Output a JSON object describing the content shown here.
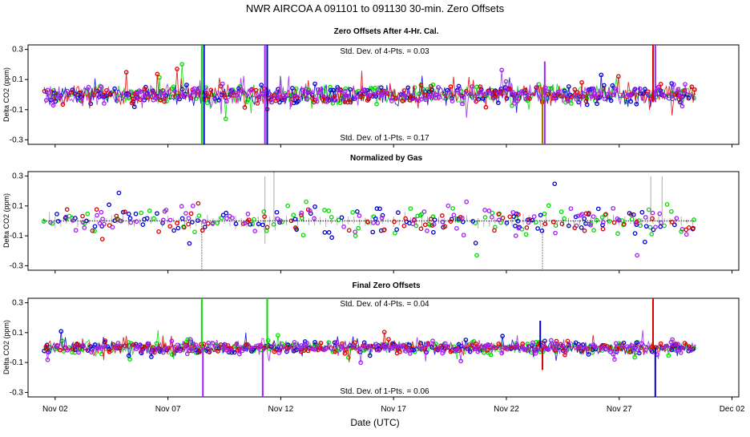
{
  "chart_data": {
    "type": "scatter",
    "title": "NWR   AIRCOA A   091101 to 091130   30-min. Zero Offsets",
    "xlabel": "Date (UTC)",
    "x_ticks": [
      "Nov 02",
      "Nov 07",
      "Nov 12",
      "Nov 17",
      "Nov 22",
      "Nov 27",
      "Dec 02"
    ],
    "x_tick_days": [
      2,
      7,
      12,
      17,
      22,
      27,
      32
    ],
    "xlim": [
      0.8,
      32.3
    ],
    "series_colors": [
      "#00dd00",
      "#0000cc",
      "#dd0000",
      "#a020f0"
    ],
    "panels": [
      {
        "title": "Zero Offsets After 4-Hr. Cal.",
        "ylabel": "Delta CO2 (ppm)",
        "y_ticks": [
          "0.3",
          "0.1",
          "-0.1",
          "-0.3"
        ],
        "y_tick_values": [
          0.3,
          0.1,
          -0.1,
          -0.3
        ],
        "ylim": [
          -0.33,
          0.33
        ],
        "ann_top": "Std. Dev. of 4-Pts. = 0.03",
        "ann_bottom": "Std. Dev. of 1-Pts. = 0.17",
        "spread": 0.055,
        "spikes": [
          {
            "day": 8.5,
            "color": "#00dd00",
            "range": [
              -0.33,
              0.33
            ]
          },
          {
            "day": 8.6,
            "color": "#0000cc",
            "range": [
              -0.33,
              0.33
            ]
          },
          {
            "day": 11.3,
            "color": "#a020f0",
            "range": [
              -0.33,
              0.33
            ]
          },
          {
            "day": 11.4,
            "color": "#0000cc",
            "range": [
              -0.33,
              0.33
            ]
          },
          {
            "day": 23.6,
            "color": "#a07800",
            "range": [
              -0.33,
              0.05
            ]
          },
          {
            "day": 23.7,
            "color": "#a020f0",
            "range": [
              -0.33,
              0.22
            ]
          },
          {
            "day": 28.5,
            "color": "#dd0000",
            "range": [
              -0.05,
              0.33
            ]
          },
          {
            "day": 28.6,
            "color": "#a020f0",
            "range": [
              -0.05,
              0.33
            ]
          }
        ]
      },
      {
        "title": "Normalized by Gas",
        "ylabel": "Delta CO2 (ppm)",
        "y_ticks": [
          "0.3",
          "0.1",
          "-0.1",
          "-0.3"
        ],
        "y_tick_values": [
          0.3,
          0.1,
          -0.1,
          -0.3
        ],
        "ylim": [
          -0.33,
          0.33
        ],
        "ann_top": "",
        "ann_bottom": "",
        "spread": 0.08,
        "spikes": [
          {
            "day": 8.5,
            "color": "#555555",
            "range": [
              -0.33,
              0.0
            ]
          },
          {
            "day": 11.3,
            "color": "#555555",
            "range": [
              -0.15,
              0.3
            ]
          },
          {
            "day": 11.7,
            "color": "#555555",
            "range": [
              0.0,
              0.33
            ]
          },
          {
            "day": 23.6,
            "color": "#555555",
            "range": [
              -0.33,
              0.0
            ]
          },
          {
            "day": 28.4,
            "color": "#555555",
            "range": [
              0.0,
              0.3
            ]
          },
          {
            "day": 28.9,
            "color": "#555555",
            "range": [
              0.0,
              0.3
            ]
          }
        ]
      },
      {
        "title": "Final Zero Offsets",
        "ylabel": "Delta CO2 (ppm)",
        "y_ticks": [
          "0.3",
          "0.1",
          "-0.1",
          "-0.3"
        ],
        "y_tick_values": [
          0.3,
          0.1,
          -0.1,
          -0.3
        ],
        "ylim": [
          -0.33,
          0.33
        ],
        "ann_top": "Std. Dev. of 4-Pts. = 0.04",
        "ann_bottom": "Std. Dev. of 1-Pts. = 0.06",
        "spread": 0.035,
        "spikes": [
          {
            "day": 8.5,
            "color": "#00dd00",
            "range": [
              0.0,
              0.33
            ]
          },
          {
            "day": 8.55,
            "color": "#a020f0",
            "range": [
              -0.33,
              0.0
            ]
          },
          {
            "day": 11.2,
            "color": "#a020f0",
            "range": [
              -0.33,
              0.0
            ]
          },
          {
            "day": 11.4,
            "color": "#00dd00",
            "range": [
              0.0,
              0.33
            ]
          },
          {
            "day": 23.5,
            "color": "#0000cc",
            "range": [
              0.0,
              0.18
            ]
          },
          {
            "day": 23.6,
            "color": "#dd0000",
            "range": [
              -0.15,
              0.0
            ]
          },
          {
            "day": 28.5,
            "color": "#dd0000",
            "range": [
              0.0,
              0.33
            ]
          },
          {
            "day": 28.6,
            "color": "#0000cc",
            "range": [
              -0.33,
              0.0
            ]
          }
        ]
      }
    ]
  }
}
